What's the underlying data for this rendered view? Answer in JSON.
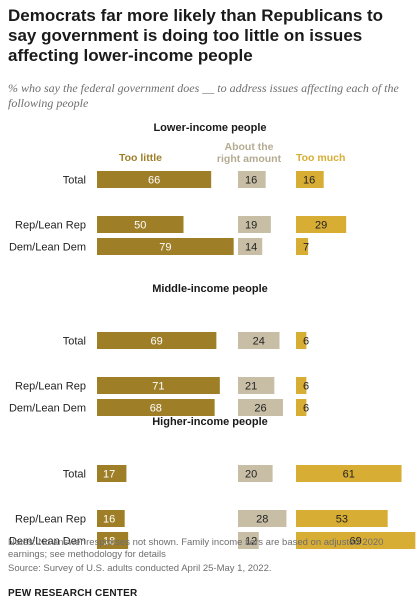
{
  "title": "Democrats far more likely than Republicans to say government is doing too little on issues affecting lower-income people",
  "subtitle": "% who say the federal government does __ to address issues affecting each of the following people",
  "notes": "Notes: No answer responses not shown. Family income tiers are based on adjusted 2020 earnings; see methodology for details",
  "source": "Source: Survey of U.S. adults conducted April 25-May 1, 2022.",
  "brand": "PEW RESEARCH CENTER",
  "colors": {
    "too_little": "#9e7e26",
    "about_right": "#c8bea6",
    "too_much": "#d8ad34"
  },
  "chart_data": {
    "type": "bar",
    "columns": [
      "Too little",
      "About the right amount",
      "Too much"
    ],
    "panels": [
      {
        "title": "Lower-income people",
        "rows": [
          {
            "label": "Total",
            "values": [
              66,
              16,
              16
            ]
          },
          {
            "label": "Rep/Lean Rep",
            "values": [
              50,
              19,
              29
            ]
          },
          {
            "label": "Dem/Lean Dem",
            "values": [
              79,
              14,
              7
            ]
          }
        ]
      },
      {
        "title": "Middle-income people",
        "rows": [
          {
            "label": "Total",
            "values": [
              69,
              24,
              6
            ]
          },
          {
            "label": "Rep/Lean Rep",
            "values": [
              71,
              21,
              6
            ]
          },
          {
            "label": "Dem/Lean Dem",
            "values": [
              68,
              26,
              6
            ]
          }
        ]
      },
      {
        "title": "Higher-income people",
        "rows": [
          {
            "label": "Total",
            "values": [
              17,
              20,
              61
            ]
          },
          {
            "label": "Rep/Lean Rep",
            "values": [
              16,
              28,
              53
            ]
          },
          {
            "label": "Dem/Lean Dem",
            "values": [
              18,
              12,
              69
            ]
          }
        ]
      }
    ]
  }
}
